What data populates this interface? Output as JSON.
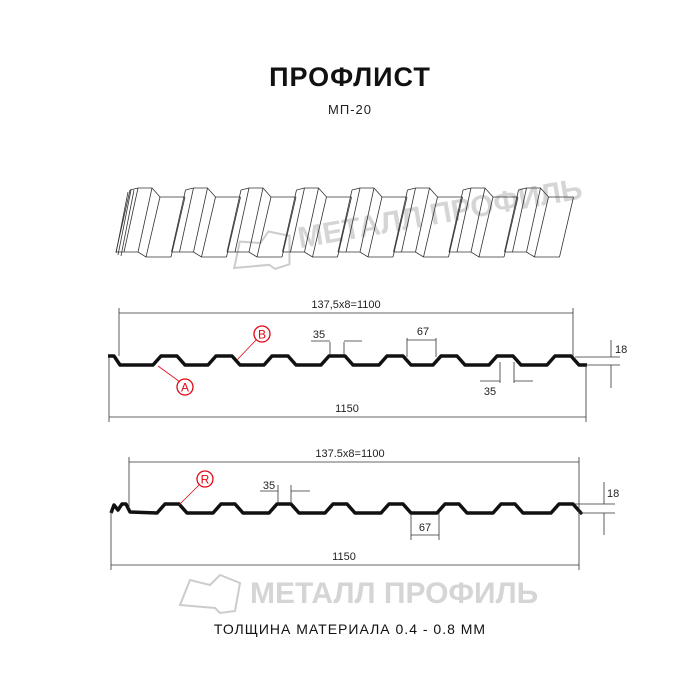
{
  "header": {
    "title": "ПРОФЛИСТ",
    "subtitle": "МП-20"
  },
  "watermark": {
    "text": "МЕТАЛЛ ПРОФИЛЬ",
    "color": "#c8c8c8"
  },
  "profile_1": {
    "pitch_label": "137,5x8=1100",
    "width_label": "1150",
    "rib_top_label": "35",
    "rib_bottom_label": "35",
    "valley_label": "67",
    "height_label": "18",
    "callout_a": "A",
    "callout_b": "B"
  },
  "profile_2": {
    "pitch_label": "137.5x8=1100",
    "width_label": "1150",
    "rib_top_label": "35",
    "valley_label": "67",
    "height_label": "18",
    "callout_r": "R"
  },
  "colors": {
    "callout": "#e30613",
    "line": "#111111"
  },
  "footer": {
    "thickness": "ТОЛЩИНА МАТЕРИАЛА 0.4 - 0.8 ММ"
  }
}
